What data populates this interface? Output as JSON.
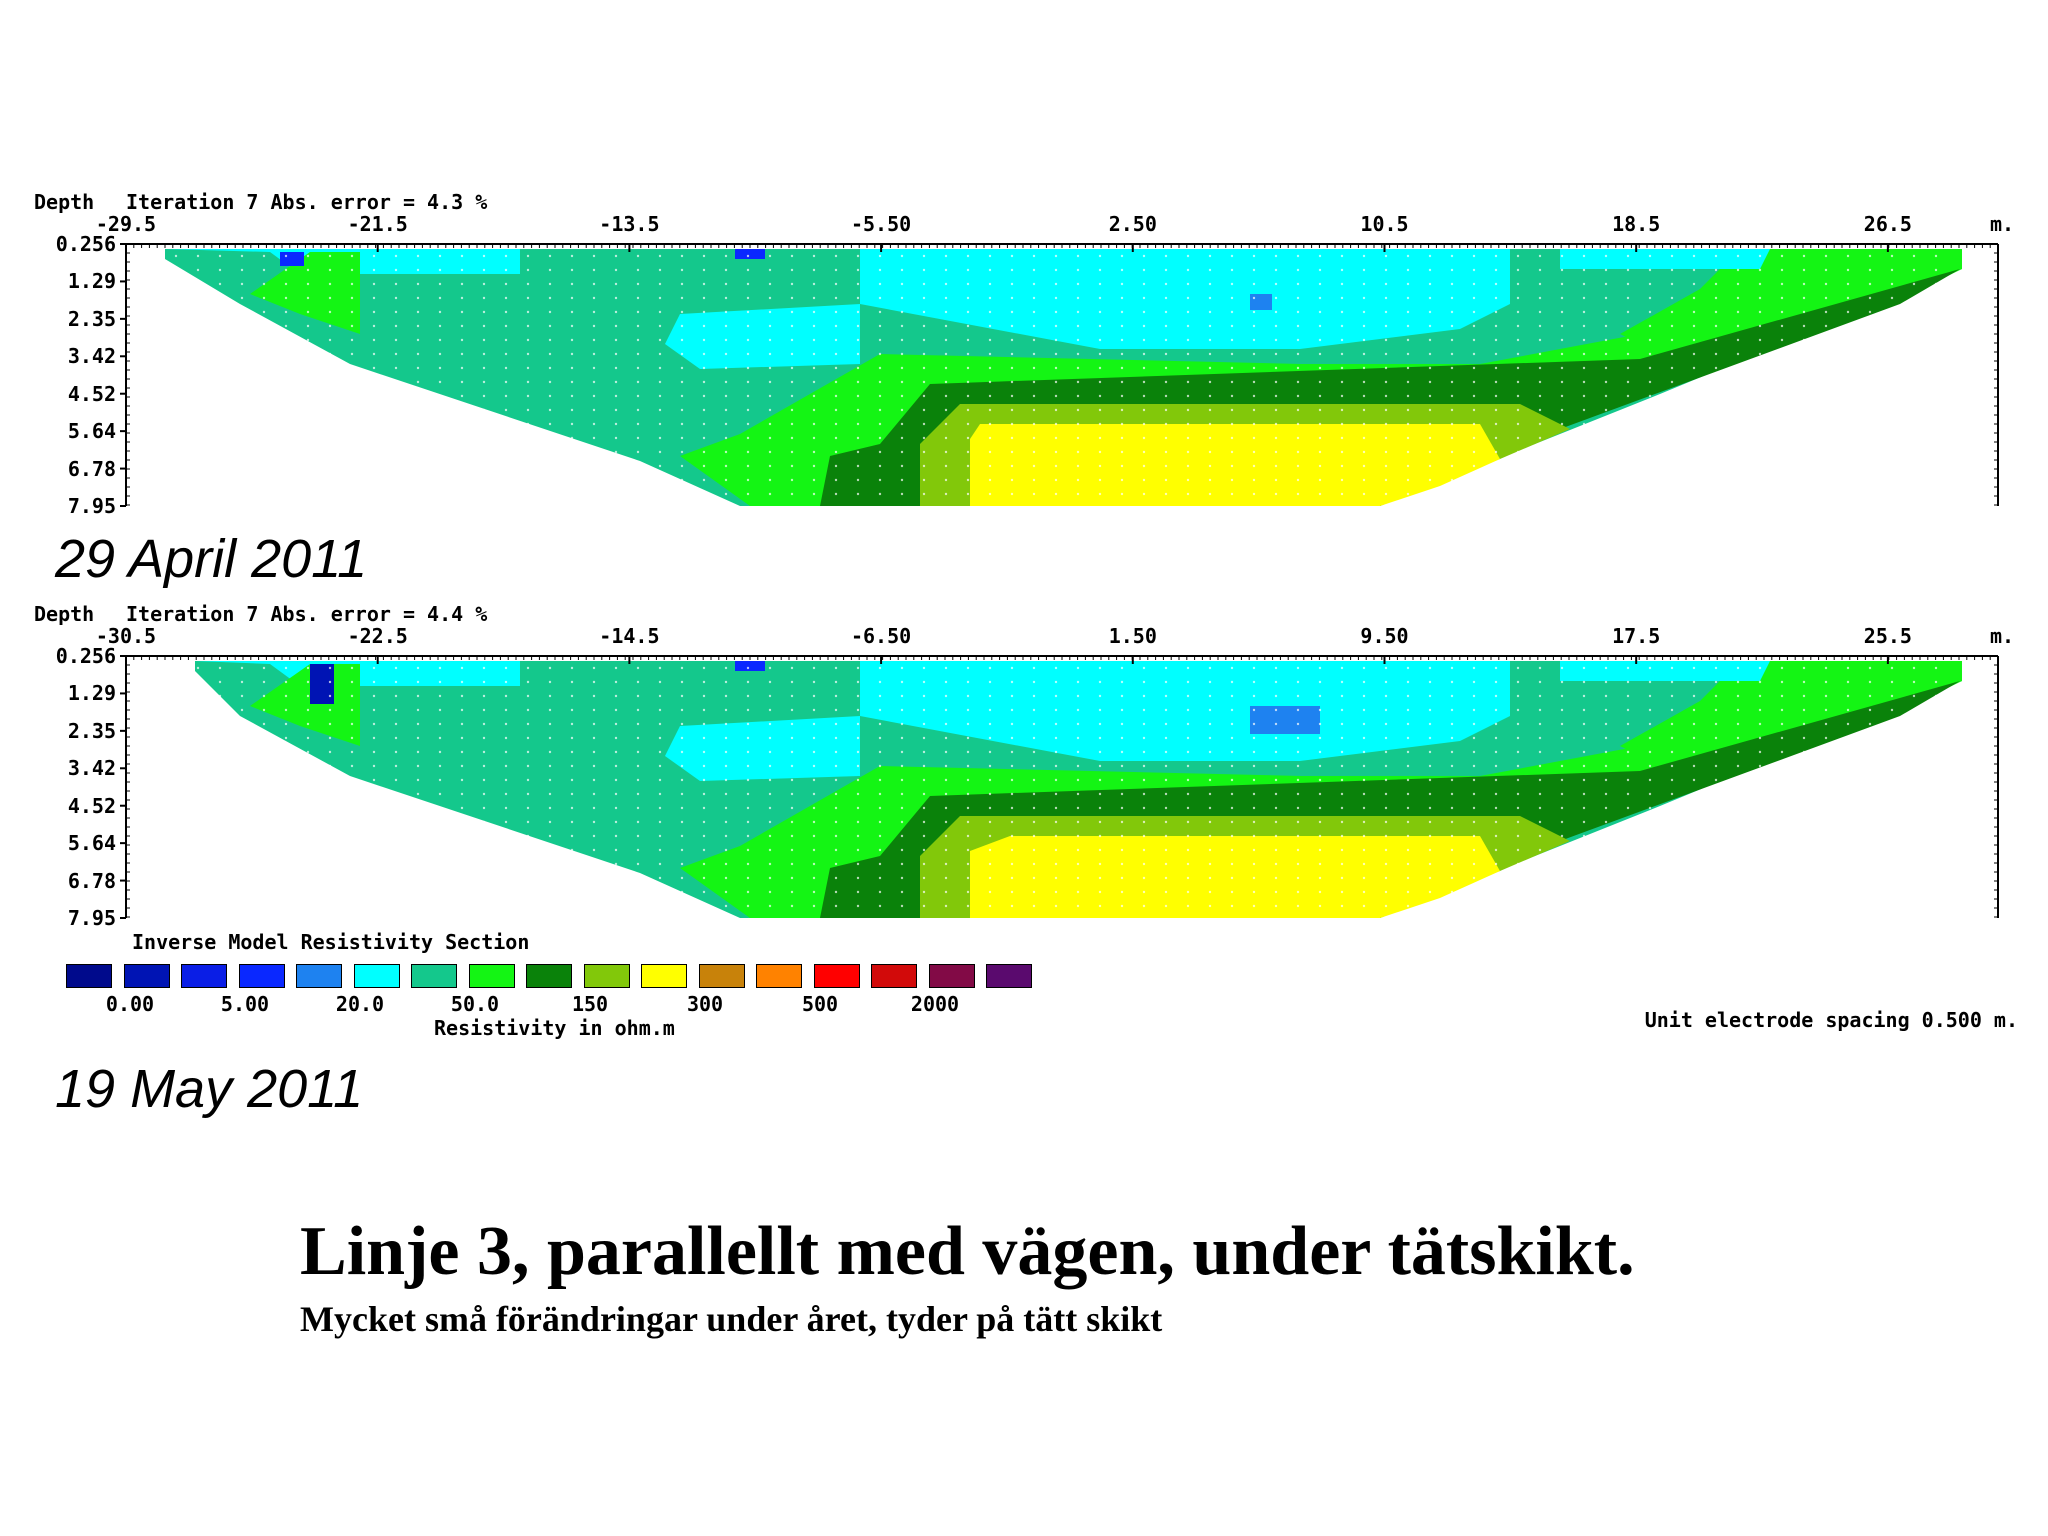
{
  "chart_data": [
    {
      "type": "heatmap",
      "header_depth": "Depth",
      "header_iteration": "Iteration 7 Abs. error = 4.3 %",
      "x_unit": "m.",
      "x_ticks": [
        "-29.5",
        "-21.5",
        "-13.5",
        "-5.50",
        "2.50",
        "10.5",
        "18.5",
        "26.5"
      ],
      "xlim": [
        -29.5,
        30.0
      ],
      "y_ticks": [
        "0.256",
        "1.29",
        "2.35",
        "3.42",
        "4.52",
        "5.64",
        "6.78",
        "7.95"
      ],
      "ylim": [
        0.256,
        7.95
      ],
      "date_label": "29 April 2011"
    },
    {
      "type": "heatmap",
      "header_depth": "Depth",
      "header_iteration": "Iteration 7 Abs. error = 4.4 %",
      "x_unit": "m.",
      "x_ticks": [
        "-30.5",
        "-22.5",
        "-14.5",
        "-6.50",
        "1.50",
        "9.50",
        "17.5",
        "25.5"
      ],
      "xlim": [
        -30.5,
        29.0
      ],
      "y_ticks": [
        "0.256",
        "1.29",
        "2.35",
        "3.42",
        "4.52",
        "5.64",
        "6.78",
        "7.95"
      ],
      "ylim": [
        0.256,
        7.95
      ],
      "date_label": "19 May 2011"
    }
  ],
  "legend": {
    "title": "Inverse Model Resistivity Section",
    "colors": [
      "#000a8c",
      "#0014b4",
      "#0a1ee6",
      "#0a28ff",
      "#1e82f0",
      "#00ffff",
      "#14c88c",
      "#14f514",
      "#0a820a",
      "#82c80a",
      "#ffff00",
      "#c8820a",
      "#ff8200",
      "#ff0000",
      "#d20a0a",
      "#820a46",
      "#5a0a6e"
    ],
    "values": [
      "0.00",
      "5.00",
      "20.0",
      "50.0",
      "150",
      "300",
      "500",
      "2000"
    ],
    "unit": "Resistivity in ohm.m"
  },
  "spacing_note": "Unit electrode spacing 0.500 m.",
  "title": "Linje 3, parallellt med vägen, under tätskikt.",
  "subtitle": "Mycket små förändringar under året, tyder på tätt skikt"
}
